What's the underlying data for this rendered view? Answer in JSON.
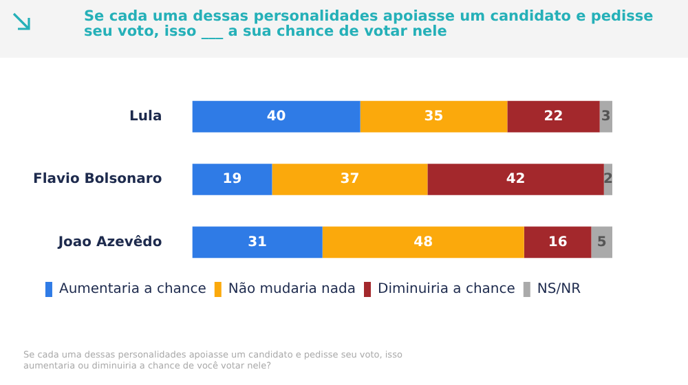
{
  "chart_data": {
    "type": "bar",
    "orientation": "horizontal",
    "stacked": true,
    "data_labels": true,
    "legend": "bottom",
    "title": "Se cada uma dessas personalidades apoiasse um candidato e pedisse seu voto, isso ___ a sua chance de votar nele",
    "annotations": [
      "Se cada uma dessas personalidades apoiasse um candidato e pedisse seu voto, isso aumentaria ou diminuiria a chance de você votar nele?"
    ],
    "categories": [
      "Lula",
      "Flavio Bolsonaro",
      "Joao Azevêdo"
    ],
    "series": [
      {
        "name": "Aumentaria a chance",
        "color": "#2f7be6",
        "values": [
          40,
          19,
          31
        ]
      },
      {
        "name": "Não mudaria nada",
        "color": "#fba90c",
        "values": [
          35,
          37,
          48
        ]
      },
      {
        "name": "Diminuiria a chance",
        "color": "#a3282c",
        "values": [
          22,
          42,
          16
        ]
      },
      {
        "name": "NS/NR",
        "color": "#aaaaaa",
        "values": [
          3,
          2,
          5
        ]
      }
    ]
  }
}
